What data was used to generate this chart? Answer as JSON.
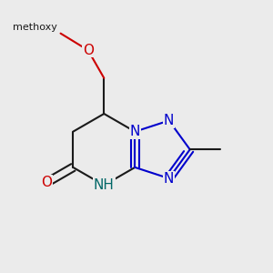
{
  "bg_color": "#ebebeb",
  "bond_color": "#1a1a1a",
  "N_color": "#0000cc",
  "O_color": "#cc0000",
  "NH_color": "#006666",
  "bond_lw": 1.5,
  "font_size": 11,
  "bl": 0.11,
  "fused_N1": [
    0.495,
    0.555
  ],
  "fused_C4a": [
    0.495,
    0.445
  ]
}
